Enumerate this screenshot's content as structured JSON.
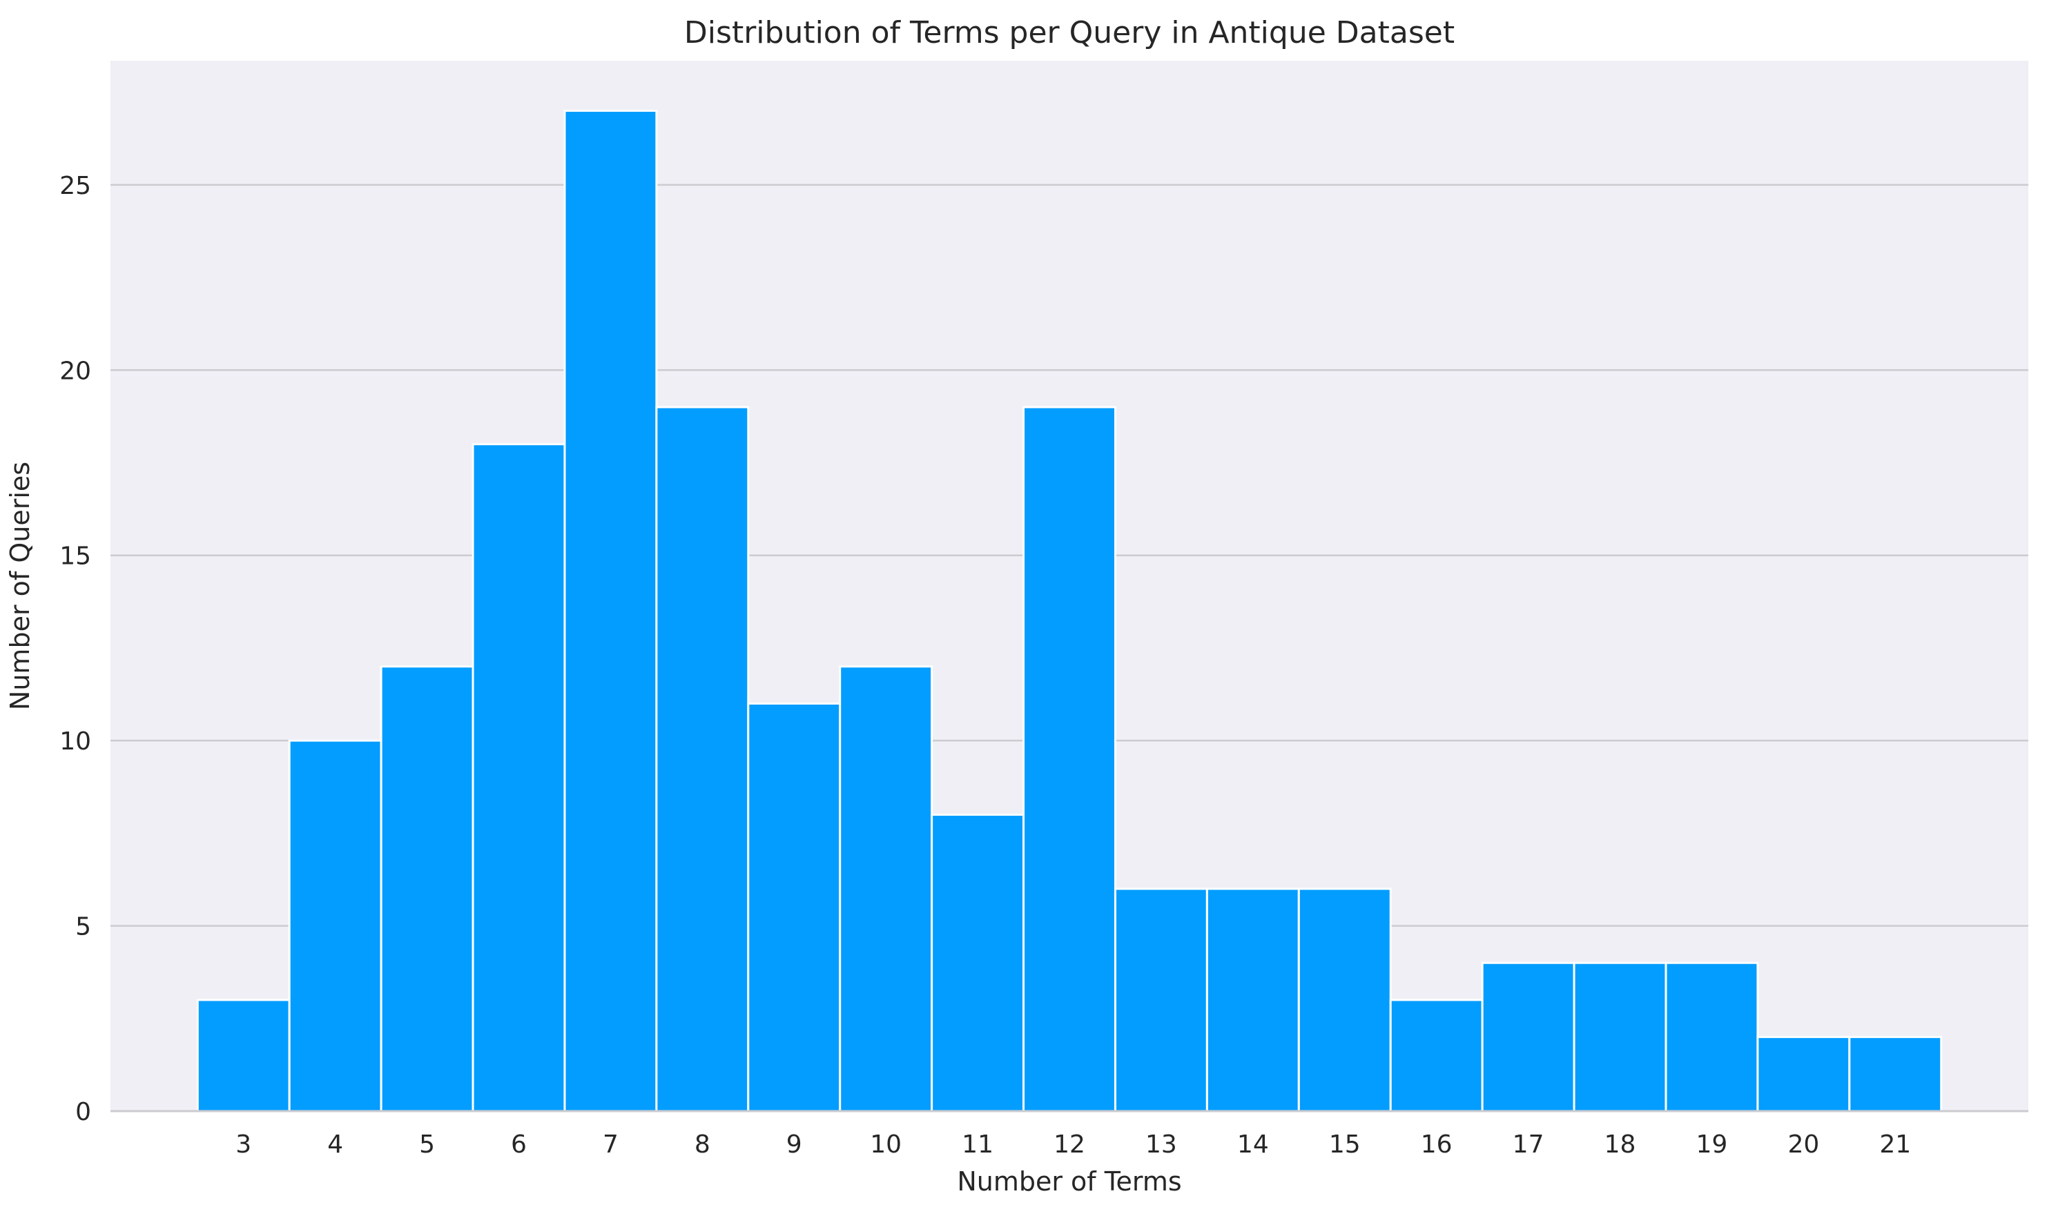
{
  "chart_data": {
    "type": "bar",
    "title": "Distribution of Terms per Query in Antique Dataset",
    "xlabel": "Number of Terms",
    "ylabel": "Number of Queries",
    "categories": [
      "3",
      "4",
      "5",
      "6",
      "7",
      "8",
      "9",
      "10",
      "11",
      "12",
      "13",
      "14",
      "15",
      "16",
      "17",
      "18",
      "19",
      "20",
      "21"
    ],
    "values": [
      3,
      10,
      12,
      18,
      27,
      19,
      11,
      12,
      8,
      19,
      6,
      6,
      6,
      3,
      4,
      4,
      4,
      2,
      2
    ],
    "xlim": [
      1.55,
      22.45
    ],
    "ylim": [
      0,
      28.35
    ],
    "yticks": [
      0,
      5,
      10,
      15,
      20,
      25
    ],
    "grid": "horizontal",
    "colors": {
      "bar": "#039dff",
      "bar_edge": "#ffffff",
      "plot_background": "#efeff5",
      "grid": "#cbcbd0",
      "axis_line": "#cbcbd0"
    }
  }
}
